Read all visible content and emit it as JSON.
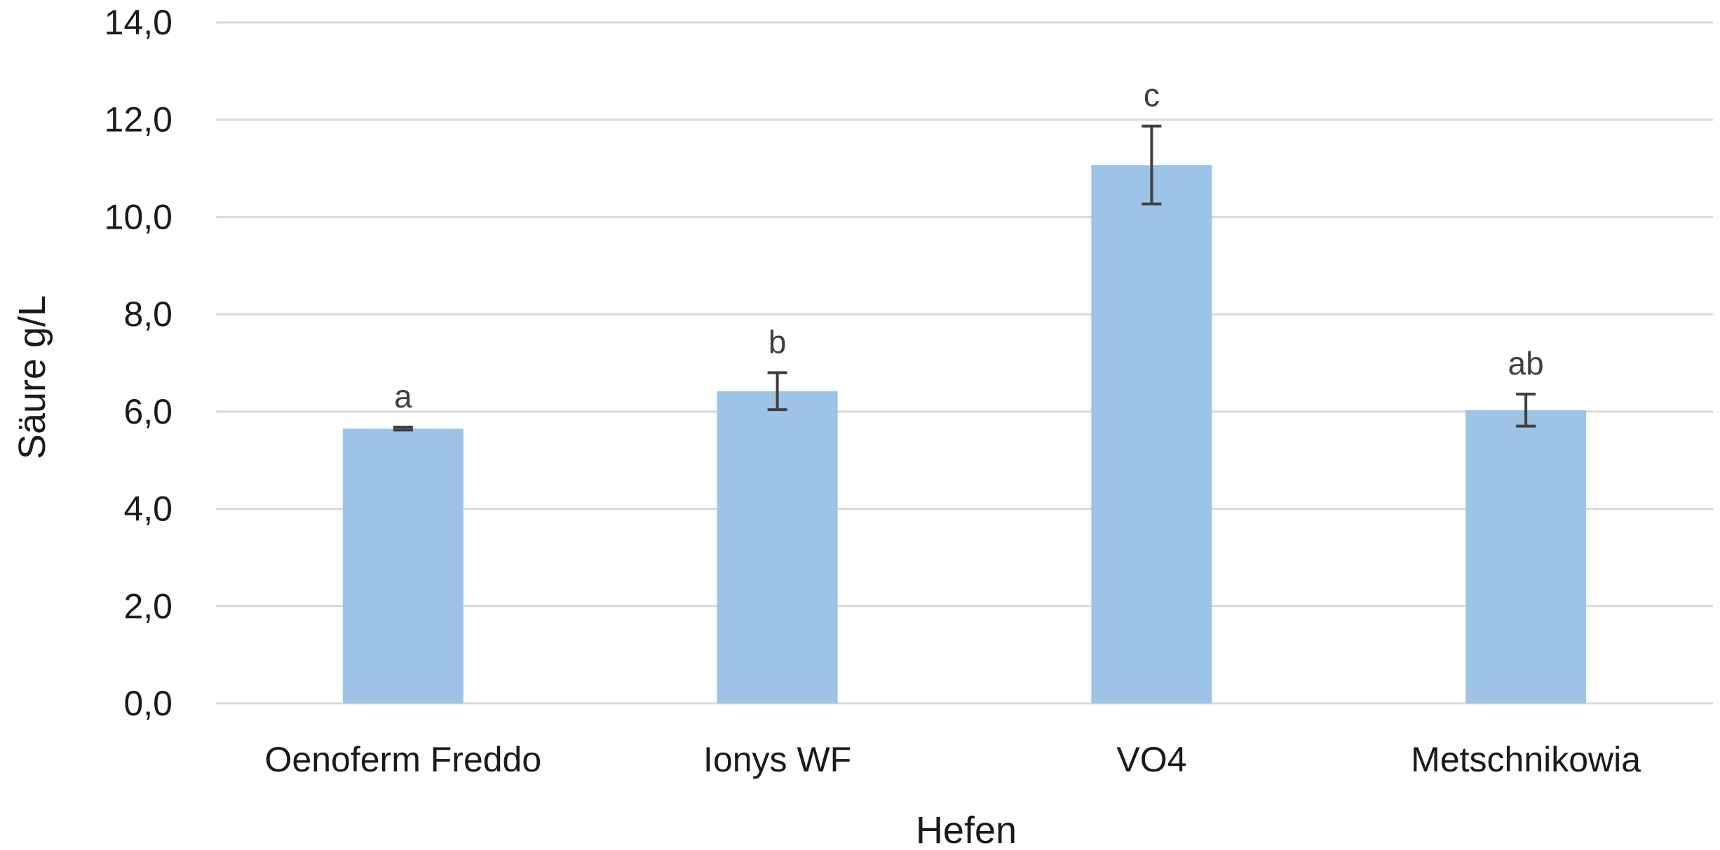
{
  "chart_data": {
    "type": "bar",
    "title": "",
    "xlabel": "Hefen",
    "ylabel": "Säure g/L",
    "categories": [
      "Oenoferm Freddo",
      "Ionys WF",
      "VO4",
      "Metschnikowia"
    ],
    "values": [
      5.65,
      6.42,
      11.07,
      6.03
    ],
    "error": [
      0.03,
      0.38,
      0.8,
      0.33
    ],
    "significance_letters": [
      "a",
      "b",
      "c",
      "ab"
    ],
    "ylim": [
      0,
      14
    ],
    "yticks": [
      0,
      2,
      4,
      6,
      8,
      10,
      12,
      14
    ],
    "ytick_labels": [
      "0,0",
      "2,0",
      "4,0",
      "6,0",
      "8,0",
      "10,0",
      "12,0",
      "14,0"
    ],
    "grid": true,
    "legend": "none",
    "colors": {
      "bar": "#9dc3e6",
      "grid": "#d9d9d9",
      "error_bar": "#404040"
    }
  }
}
